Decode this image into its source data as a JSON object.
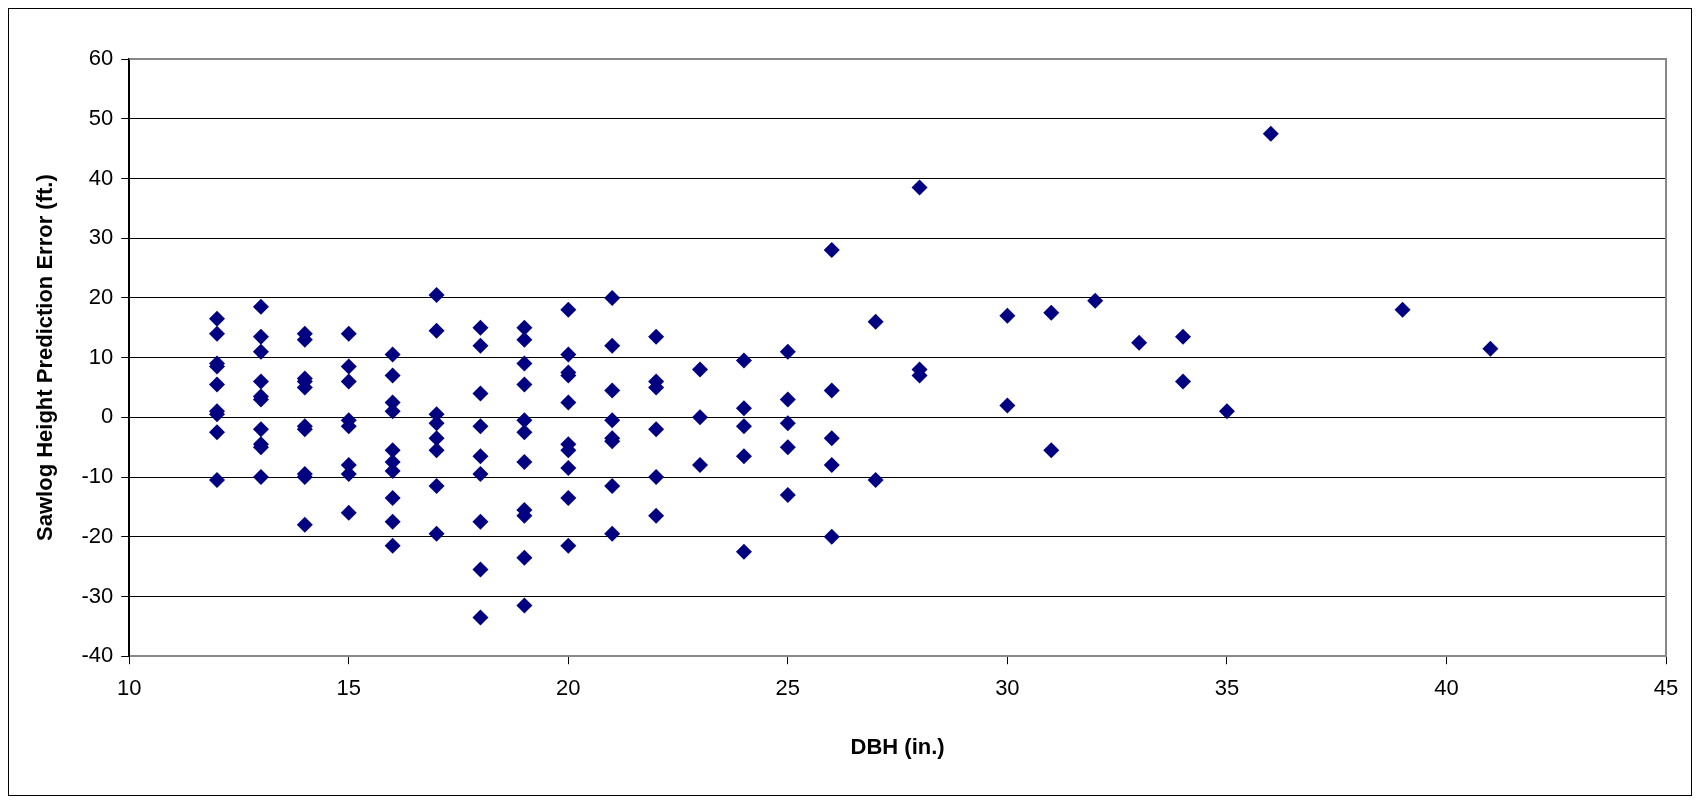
{
  "chart_data": {
    "type": "scatter",
    "xlabel": "DBH (in.)",
    "ylabel": "Sawlog Height Prediction Error (ft.)",
    "xlim": [
      10,
      45
    ],
    "xticks": [
      10,
      15,
      20,
      25,
      30,
      35,
      40,
      45
    ],
    "ylim": [
      -40,
      60
    ],
    "yticks": [
      -40,
      -30,
      -20,
      -10,
      0,
      10,
      20,
      30,
      40,
      50,
      60
    ],
    "grid": "y",
    "legend": false,
    "marker": "diamond",
    "series": [
      {
        "color": "#000080",
        "x": [
          12,
          12,
          12,
          12,
          12,
          12,
          12,
          12,
          12,
          13,
          13,
          13,
          13,
          13,
          13,
          13,
          13,
          13,
          13,
          14,
          14,
          14,
          14,
          14,
          14,
          14,
          14,
          14,
          14,
          15,
          15,
          15,
          15,
          15,
          15,
          15,
          15,
          16,
          16,
          16,
          16,
          16,
          16,
          16,
          16,
          16,
          16,
          17,
          17,
          17,
          17,
          17,
          17,
          17,
          17,
          18,
          18,
          18,
          18,
          18,
          18,
          18,
          18,
          18,
          19,
          19,
          19,
          19,
          19,
          19,
          19,
          19,
          19,
          19,
          19,
          20,
          20,
          20,
          20,
          20,
          20,
          20,
          20,
          20,
          20,
          21,
          21,
          21,
          21,
          21,
          21,
          21,
          21,
          22,
          22,
          22,
          22,
          22,
          22,
          23,
          23,
          23,
          24,
          24,
          24,
          24,
          24,
          25,
          25,
          25,
          25,
          25,
          26,
          26,
          26,
          26,
          26,
          27,
          27,
          28,
          28,
          28,
          30,
          30,
          31,
          31,
          32,
          33,
          34,
          34,
          35,
          36,
          39,
          41
        ],
        "values": [
          16.5,
          14,
          9,
          8.5,
          5.5,
          1,
          0.5,
          -2.5,
          -10.5,
          18.5,
          13.5,
          11,
          6,
          3.5,
          3,
          -2,
          -4.5,
          -5,
          -10,
          14,
          13,
          6.5,
          5,
          6,
          -1.5,
          -2,
          -9.5,
          -10,
          -18,
          14,
          8.5,
          6,
          -0.5,
          -1.5,
          -8,
          -9.5,
          -16,
          10.5,
          7,
          2.5,
          1,
          -5.5,
          -7.5,
          -9,
          -13.5,
          -17.5,
          -21.5,
          20.5,
          14.5,
          0.5,
          -1,
          -3.5,
          -5.5,
          -11.5,
          -19.5,
          15,
          12,
          4,
          -1.5,
          -6.5,
          -9.5,
          -17.5,
          -25.5,
          -33.5,
          15,
          13,
          9,
          5.5,
          -0.5,
          -2.5,
          -7.5,
          -15.5,
          -16.5,
          -23.5,
          -31.5,
          18,
          10.5,
          7.5,
          7,
          2.5,
          -4.5,
          -5.5,
          -8.5,
          -13.5,
          -21.5,
          20,
          12,
          4.5,
          -0.5,
          -3.5,
          -4,
          -11.5,
          -19.5,
          13.5,
          6,
          5,
          -2,
          -10,
          -16.5,
          8,
          0,
          -8,
          9.5,
          1.5,
          -1.5,
          -6.5,
          -22.5,
          11,
          3,
          -1,
          -5,
          -13,
          28,
          4.5,
          -3.5,
          -8,
          -20,
          16,
          -10.5,
          38.5,
          8,
          7,
          17,
          2,
          17.5,
          -5.5,
          19.5,
          12.5,
          13.5,
          6,
          1,
          47.5,
          18,
          11.5
        ]
      }
    ]
  }
}
